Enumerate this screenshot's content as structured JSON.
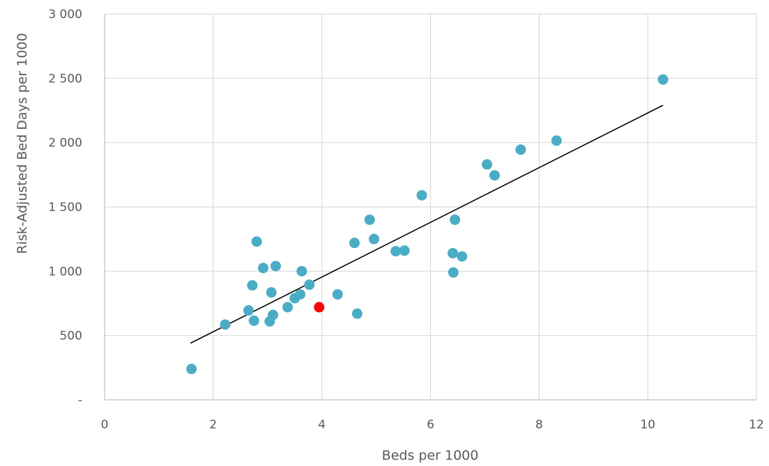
{
  "chart_data": {
    "type": "scatter",
    "title": "",
    "xlabel": "Beds per 1000",
    "ylabel": "Risk-Adjusted Bed Days per 1000",
    "xlim": [
      0,
      12
    ],
    "ylim": [
      0,
      3000
    ],
    "x_ticks": [
      {
        "value": 0,
        "label": "0"
      },
      {
        "value": 2,
        "label": "2"
      },
      {
        "value": 4,
        "label": "4"
      },
      {
        "value": 6,
        "label": "6"
      },
      {
        "value": 8,
        "label": "8"
      },
      {
        "value": 10,
        "label": "10"
      },
      {
        "value": 12,
        "label": "12"
      }
    ],
    "y_ticks": [
      {
        "value": 0,
        "label": "-"
      },
      {
        "value": 500,
        "label": "500"
      },
      {
        "value": 1000,
        "label": "1 000"
      },
      {
        "value": 1500,
        "label": "1 500"
      },
      {
        "value": 2000,
        "label": "2 000"
      },
      {
        "value": 2500,
        "label": "2 500"
      },
      {
        "value": 3000,
        "label": "3 000"
      }
    ],
    "grid": true,
    "colors": {
      "points": "#4bacc6",
      "highlight": "#ff0000",
      "trendline": "#000000",
      "grid": "#d9d9d9"
    },
    "series": [
      {
        "points": [
          [
            1.6,
            240
          ],
          [
            2.22,
            585
          ],
          [
            2.65,
            695
          ],
          [
            2.72,
            890
          ],
          [
            2.75,
            615
          ],
          [
            2.8,
            1230
          ],
          [
            2.92,
            1025
          ],
          [
            3.04,
            610
          ],
          [
            3.07,
            835
          ],
          [
            3.1,
            660
          ],
          [
            3.15,
            1040
          ],
          [
            3.37,
            720
          ],
          [
            3.5,
            790
          ],
          [
            3.6,
            820
          ],
          [
            3.63,
            1000
          ],
          [
            3.77,
            895
          ],
          [
            4.29,
            820
          ],
          [
            4.6,
            1220
          ],
          [
            4.65,
            670
          ],
          [
            4.88,
            1400
          ],
          [
            4.96,
            1250
          ],
          [
            5.36,
            1155
          ],
          [
            5.52,
            1160
          ],
          [
            5.84,
            1590
          ],
          [
            6.41,
            1140
          ],
          [
            6.42,
            990
          ],
          [
            6.45,
            1400
          ],
          [
            6.58,
            1115
          ],
          [
            7.04,
            1830
          ],
          [
            7.18,
            1745
          ],
          [
            7.66,
            1945
          ],
          [
            8.32,
            2015
          ],
          [
            10.28,
            2490
          ]
        ]
      },
      {
        "highlight": true,
        "points": [
          [
            3.95,
            720
          ]
        ]
      }
    ],
    "trendline": {
      "x": [
        1.58,
        10.28
      ],
      "y": [
        440,
        2290
      ]
    }
  }
}
